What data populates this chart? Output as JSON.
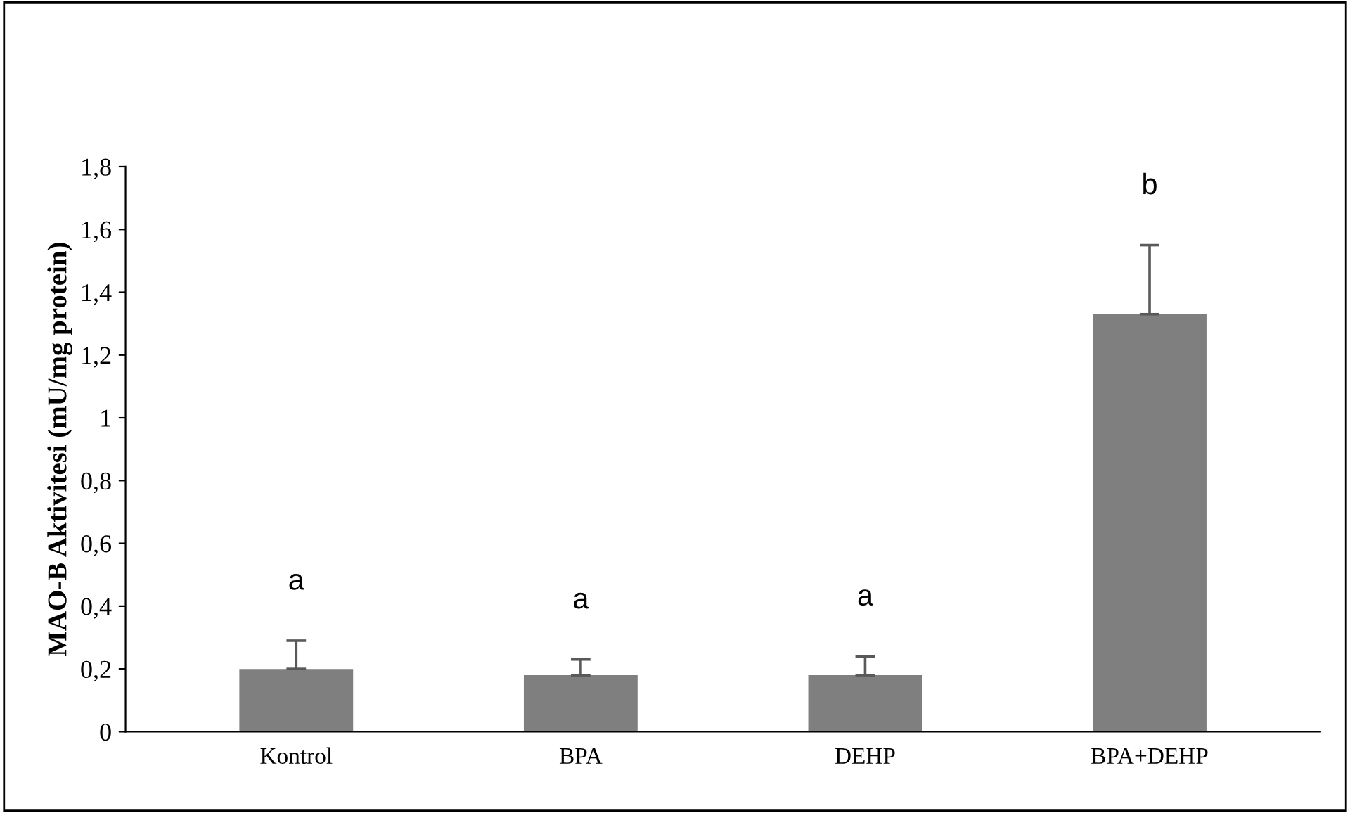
{
  "chart_data": {
    "type": "bar",
    "ylabel": "MAO-B Aktivitesi (mU/mg protein)",
    "categories": [
      "Kontrol",
      "BPA",
      "DEHP",
      "BPA+DEHP"
    ],
    "values": [
      0.2,
      0.18,
      0.18,
      1.33
    ],
    "errors": [
      [
        0.2,
        0.29
      ],
      [
        0.18,
        0.23
      ],
      [
        0.18,
        0.24
      ],
      [
        1.33,
        1.55
      ]
    ],
    "color": "#7f7f7f",
    "ylim": [
      0,
      1.8
    ],
    "yticks": [
      0,
      {
        "value": 0.2,
        "label": "0,2"
      },
      {
        "value": 0.4,
        "label": "0,4"
      },
      {
        "value": 0.6,
        "label": "0,6"
      },
      {
        "value": 0.8,
        "label": "0,8"
      },
      1,
      {
        "value": 1.2,
        "label": "1,2"
      },
      {
        "value": 1.4,
        "label": "1,4"
      },
      {
        "value": 1.6,
        "label": "1,6"
      },
      {
        "value": 1.8,
        "label": "1,8"
      }
    ],
    "grid": false,
    "legend": false,
    "annotations": [
      "a",
      "a",
      "a",
      "b"
    ]
  }
}
